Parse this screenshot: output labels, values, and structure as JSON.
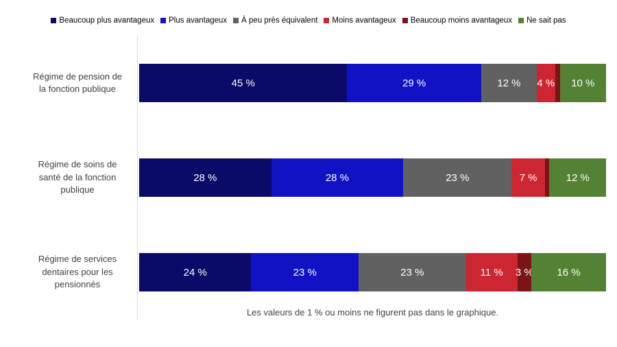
{
  "chart_data": {
    "type": "bar",
    "orientation": "horizontal",
    "stacked": true,
    "percent_scale": true,
    "grid": false,
    "legend_position": "top",
    "axis_line_color": "#d9d9d9",
    "label_suffix": " %",
    "min_label_value": 2,
    "categories": [
      "Régime de pension de la fonction publique",
      "Régime de soins de santé de la fonction publique",
      "Régime de services dentaires pour les pensionnés"
    ],
    "category_label_lines": [
      [
        "Régime de pension de",
        "la fonction publique"
      ],
      [
        "Régime de soins de",
        "santé de la fonction",
        "publique"
      ],
      [
        "Régime de services",
        "dentaires pour les",
        "pensionnés"
      ]
    ],
    "series": [
      {
        "name": "Beaucoup plus avantageux",
        "color": "#0a0a69",
        "values": [
          45,
          28,
          24
        ]
      },
      {
        "name": "Plus avantageux",
        "color": "#1111c6",
        "values": [
          29,
          28,
          23
        ]
      },
      {
        "name": "À peu près équivalent",
        "color": "#616161",
        "values": [
          12,
          23,
          23
        ]
      },
      {
        "name": "Moins avantageux",
        "color": "#ce2533",
        "values": [
          4,
          7,
          11
        ]
      },
      {
        "name": "Beaucoup moins avantageux",
        "color": "#7a1416",
        "values": [
          1,
          1,
          3
        ]
      },
      {
        "name": "Ne sait pas",
        "color": "#548235",
        "values": [
          10,
          12,
          16
        ]
      }
    ],
    "note": "Les valeurs de 1 % ou moins ne figurent pas dans le graphique."
  }
}
